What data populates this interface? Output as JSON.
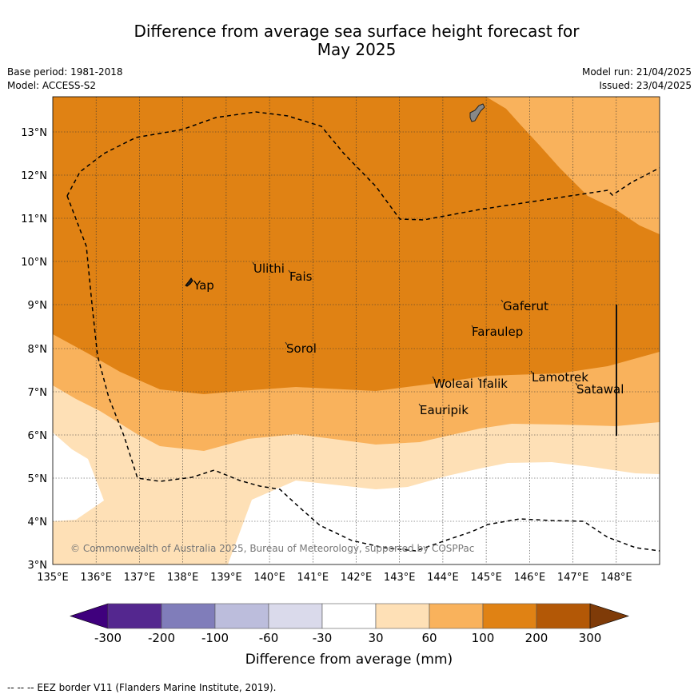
{
  "title": {
    "line1": "Difference from average sea surface height forecast for",
    "line2": "May 2025"
  },
  "meta": {
    "base_period": "Base period: 1981-2018",
    "model": "Model: ACCESS-S2",
    "model_run": "Model run: 21/04/2025",
    "issued": "Issued: 23/04/2025"
  },
  "map": {
    "lon_labels": [
      "135°E",
      "136°E",
      "137°E",
      "138°E",
      "139°E",
      "140°E",
      "141°E",
      "142°E",
      "143°E",
      "144°E",
      "145°E",
      "146°E",
      "147°E",
      "148°E"
    ],
    "lat_labels": [
      "3°N",
      "4°N",
      "5°N",
      "6°N",
      "7°N",
      "8°N",
      "9°N",
      "10°N",
      "11°N",
      "12°N",
      "13°N"
    ],
    "places": [
      {
        "name": "Yap"
      },
      {
        "name": "Ulithi"
      },
      {
        "name": "Fais"
      },
      {
        "name": "Gaferut"
      },
      {
        "name": "Faraulep"
      },
      {
        "name": "Sorol"
      },
      {
        "name": "Lamotrek"
      },
      {
        "name": "Woleai"
      },
      {
        "name": "Ifalik"
      },
      {
        "name": "Satawal"
      },
      {
        "name": "Eauripik"
      }
    ],
    "copyright": "© Commonwealth of Australia 2025, Bureau of Meteorology, supported by COSPPac"
  },
  "colorbar": {
    "ticks": [
      "-300",
      "-200",
      "-100",
      "-60",
      "-30",
      "30",
      "60",
      "100",
      "200",
      "300"
    ],
    "colors": [
      "#54278f",
      "#807dba",
      "#bcbddc",
      "#dadaeb",
      "#ffffff",
      "#fee0b6",
      "#f9b25c",
      "#e08214",
      "#b35806"
    ],
    "under_color": "#3f007d",
    "over_color": "#7f3b08",
    "title": "Difference from average (mm)"
  },
  "footer": "--  --  -- EEZ border V11 (Flanders Marine Institute, 2019)."
}
